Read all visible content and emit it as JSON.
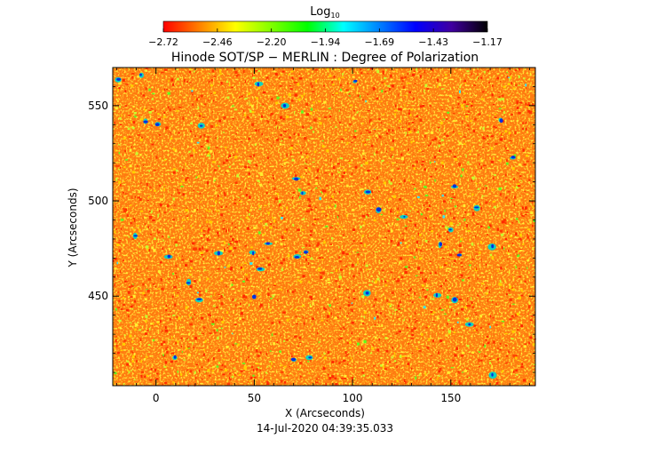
{
  "chart_data": {
    "type": "heatmap",
    "title": "Hinode SOT/SP − MERLIN : Degree of Polarization",
    "colorbar": {
      "label": "Log",
      "label_subscript": "10",
      "range": [
        -2.72,
        -1.17
      ],
      "ticks": [
        "−2.72",
        "−2.46",
        "−2.20",
        "−1.94",
        "−1.69",
        "−1.43",
        "−1.17"
      ],
      "colormap": [
        "#ff0000",
        "#ff8000",
        "#ffff00",
        "#80ff00",
        "#00ff00",
        "#00ffff",
        "#0080ff",
        "#0000ff",
        "#4000a0",
        "#000000"
      ]
    },
    "xlabel": "X (Arcseconds)",
    "ylabel": "Y (Arcseconds)",
    "xlim": [
      -22,
      193
    ],
    "ylim": [
      403,
      570
    ],
    "xticks": [
      0,
      50,
      100,
      150
    ],
    "yticks": [
      450,
      500,
      550
    ],
    "grid": false,
    "timestamp": "14-Jul-2020 04:39:35.033",
    "dominant_color": "#ff7a10"
  }
}
